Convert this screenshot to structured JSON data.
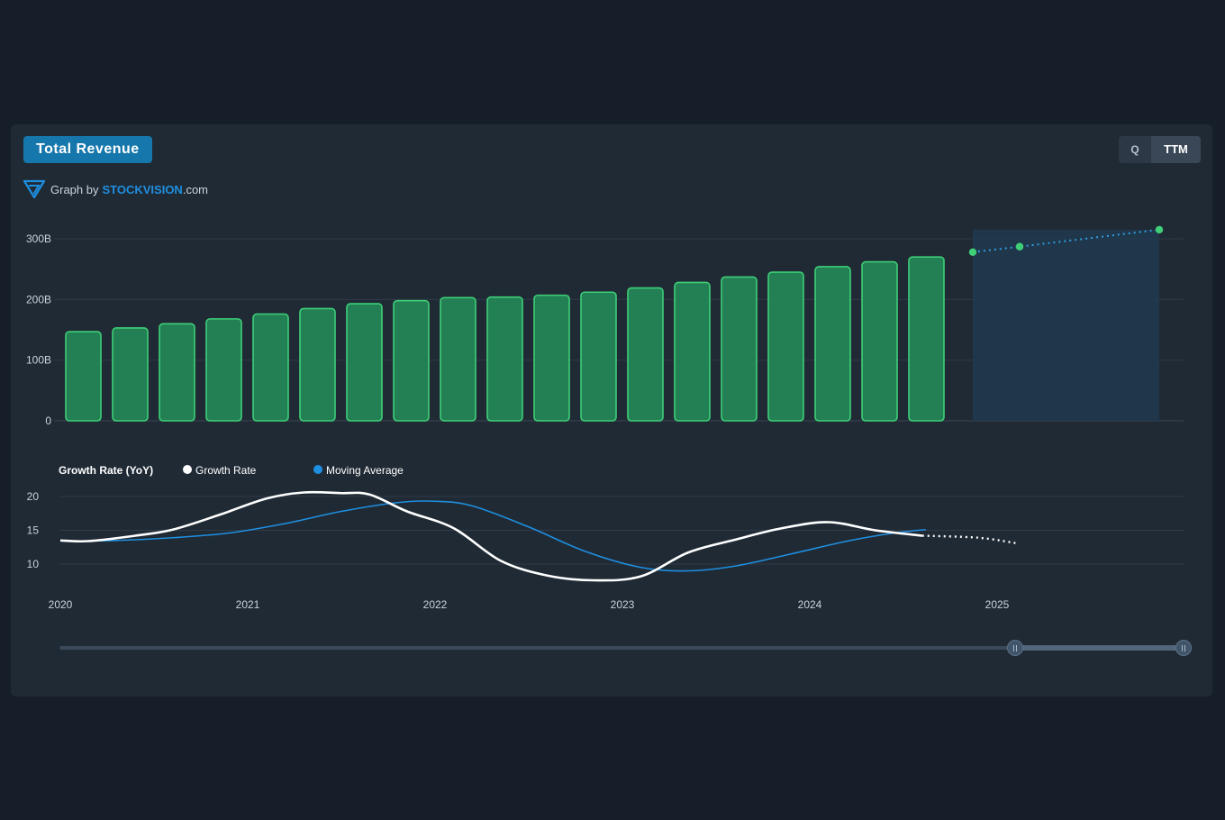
{
  "header": {
    "title": "Total Revenue",
    "toggle": {
      "q_label": "Q",
      "ttm_label": "TTM",
      "active": "TTM"
    },
    "brand": {
      "prefix": "Graph by",
      "name_part1": "STOCK",
      "name_part2": "VISION",
      "suffix": ".com"
    }
  },
  "colors": {
    "bar_fill": "#237f54",
    "bar_stroke": "#3ecf77",
    "forecast_area": "#213a4f",
    "forecast_line": "#2c9ee0",
    "forecast_dot": "#3ecf77",
    "growth_line": "#ffffff",
    "moving_avg_line": "#1e8fe0",
    "title_badge": "#1577ab"
  },
  "chart_data": [
    {
      "type": "bar",
      "title": "",
      "ylim": [
        0,
        300
      ],
      "y_ticks": [
        "0",
        "100B",
        "200B",
        "300B"
      ],
      "values": [
        147,
        153,
        160,
        168,
        176,
        185,
        193,
        198,
        203,
        204,
        207,
        212,
        219,
        228,
        237,
        245,
        254,
        262,
        270
      ],
      "unit": "B",
      "forecast": {
        "x": [
          "2024-11",
          "2025-02",
          "2025-10"
        ],
        "values": [
          278,
          287,
          315
        ]
      },
      "grid": true
    },
    {
      "type": "line",
      "title": "Growth Rate (YoY)",
      "ylim": [
        10,
        20
      ],
      "y_ticks": [
        "10",
        "15",
        "20"
      ],
      "x_ticks": [
        "2020",
        "2021",
        "2022",
        "2023",
        "2024",
        "2025"
      ],
      "series": [
        {
          "name": "Growth Rate",
          "x": [
            2020.0,
            2020.15,
            2020.4,
            2020.6,
            2020.85,
            2021.1,
            2021.3,
            2021.5,
            2021.65,
            2021.85,
            2022.1,
            2022.35,
            2022.6,
            2022.85,
            2023.1,
            2023.35,
            2023.6,
            2023.85,
            2024.1,
            2024.35,
            2024.6
          ],
          "values": [
            13.5,
            13.4,
            14.2,
            15.1,
            17.3,
            19.7,
            20.6,
            20.5,
            20.3,
            17.8,
            15.3,
            10.5,
            8.3,
            7.6,
            8.2,
            11.7,
            13.6,
            15.3,
            16.2,
            15.0,
            14.2
          ]
        },
        {
          "name": "Moving Average",
          "x": [
            2020.0,
            2020.3,
            2020.6,
            2020.9,
            2021.2,
            2021.5,
            2021.8,
            2022.0,
            2022.2,
            2022.5,
            2022.8,
            2023.1,
            2023.35,
            2023.6,
            2023.9,
            2024.2,
            2024.45,
            2024.62
          ],
          "values": [
            13.4,
            13.5,
            13.9,
            14.6,
            16.0,
            17.8,
            19.1,
            19.3,
            18.6,
            15.5,
            11.9,
            9.5,
            9.0,
            9.7,
            11.5,
            13.4,
            14.6,
            15.1
          ]
        },
        {
          "name": "Growth Rate forecast",
          "x": [
            2024.6,
            2024.9,
            2025.1
          ],
          "values": [
            14.2,
            13.9,
            13.1
          ]
        }
      ],
      "grid": true,
      "legend": "top-left"
    }
  ]
}
